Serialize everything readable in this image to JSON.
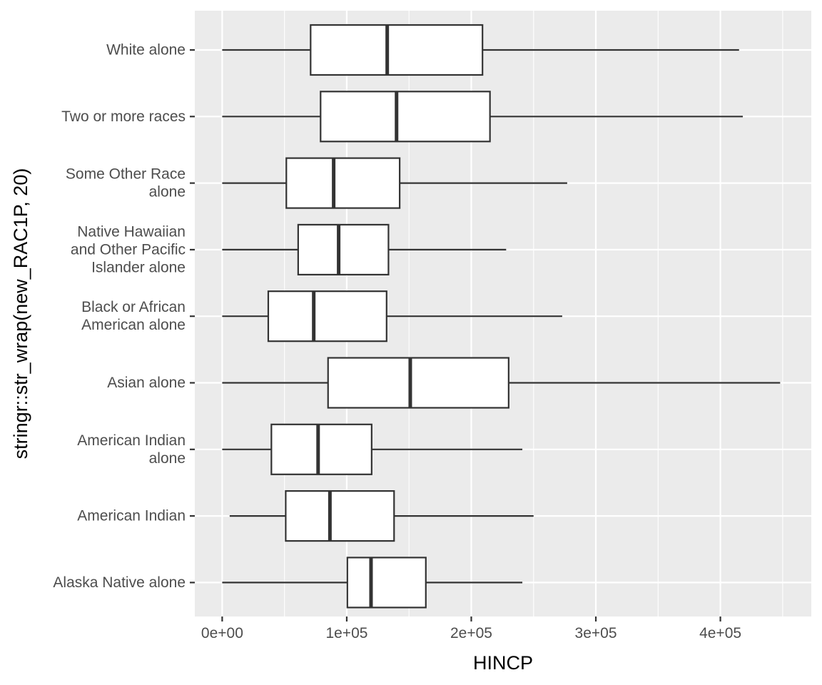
{
  "chart_data": {
    "type": "boxplot",
    "orientation": "horizontal",
    "xlabel": "HINCP",
    "ylabel": "stringr::str_wrap(new_RAC1P, 20)",
    "xlim": [
      -22000,
      473000
    ],
    "x_ticks": [
      0,
      100000,
      200000,
      300000,
      400000
    ],
    "x_tick_labels": [
      "0e+00",
      "1e+05",
      "2e+05",
      "3e+05",
      "4e+05"
    ],
    "grid": true,
    "colors": {
      "panel_background": "#ebebeb",
      "grid_line": "#ffffff",
      "box_fill": "#ffffff",
      "box_stroke": "#333333",
      "label_text": "#4d4d4d"
    },
    "categories": [
      {
        "label": "Alaska Native alone",
        "lines": [
          "Alaska Native alone"
        ],
        "min": 0,
        "q1": 100500,
        "median": 119500,
        "q3": 163500,
        "max": 241000
      },
      {
        "label": "American Indian",
        "lines": [
          "American Indian"
        ],
        "min": 6000,
        "q1": 51000,
        "median": 86500,
        "q3": 138000,
        "max": 250000
      },
      {
        "label": "American Indian alone",
        "lines": [
          "American Indian",
          "alone"
        ],
        "min": 0,
        "q1": 39500,
        "median": 77000,
        "q3": 120000,
        "max": 241000
      },
      {
        "label": "Asian alone",
        "lines": [
          "Asian alone"
        ],
        "min": 0,
        "q1": 85000,
        "median": 151000,
        "q3": 230000,
        "max": 448000
      },
      {
        "label": "Black or African American alone",
        "lines": [
          "Black or African",
          "American alone"
        ],
        "min": 0,
        "q1": 37000,
        "median": 73500,
        "q3": 132000,
        "max": 273000
      },
      {
        "label": "Native Hawaiian and Other Pacific Islander alone",
        "lines": [
          "Native Hawaiian",
          "and Other Pacific",
          "Islander alone"
        ],
        "min": 0,
        "q1": 61000,
        "median": 93500,
        "q3": 133500,
        "max": 228000
      },
      {
        "label": "Some Other Race alone",
        "lines": [
          "Some Other Race",
          "alone"
        ],
        "min": 0,
        "q1": 51500,
        "median": 89500,
        "q3": 142500,
        "max": 277000
      },
      {
        "label": "Two or more races",
        "lines": [
          "Two or more races"
        ],
        "min": 0,
        "q1": 79000,
        "median": 140000,
        "q3": 215000,
        "max": 418000
      },
      {
        "label": "White alone",
        "lines": [
          "White alone"
        ],
        "min": 0,
        "q1": 71000,
        "median": 132500,
        "q3": 209000,
        "max": 415000
      }
    ]
  }
}
